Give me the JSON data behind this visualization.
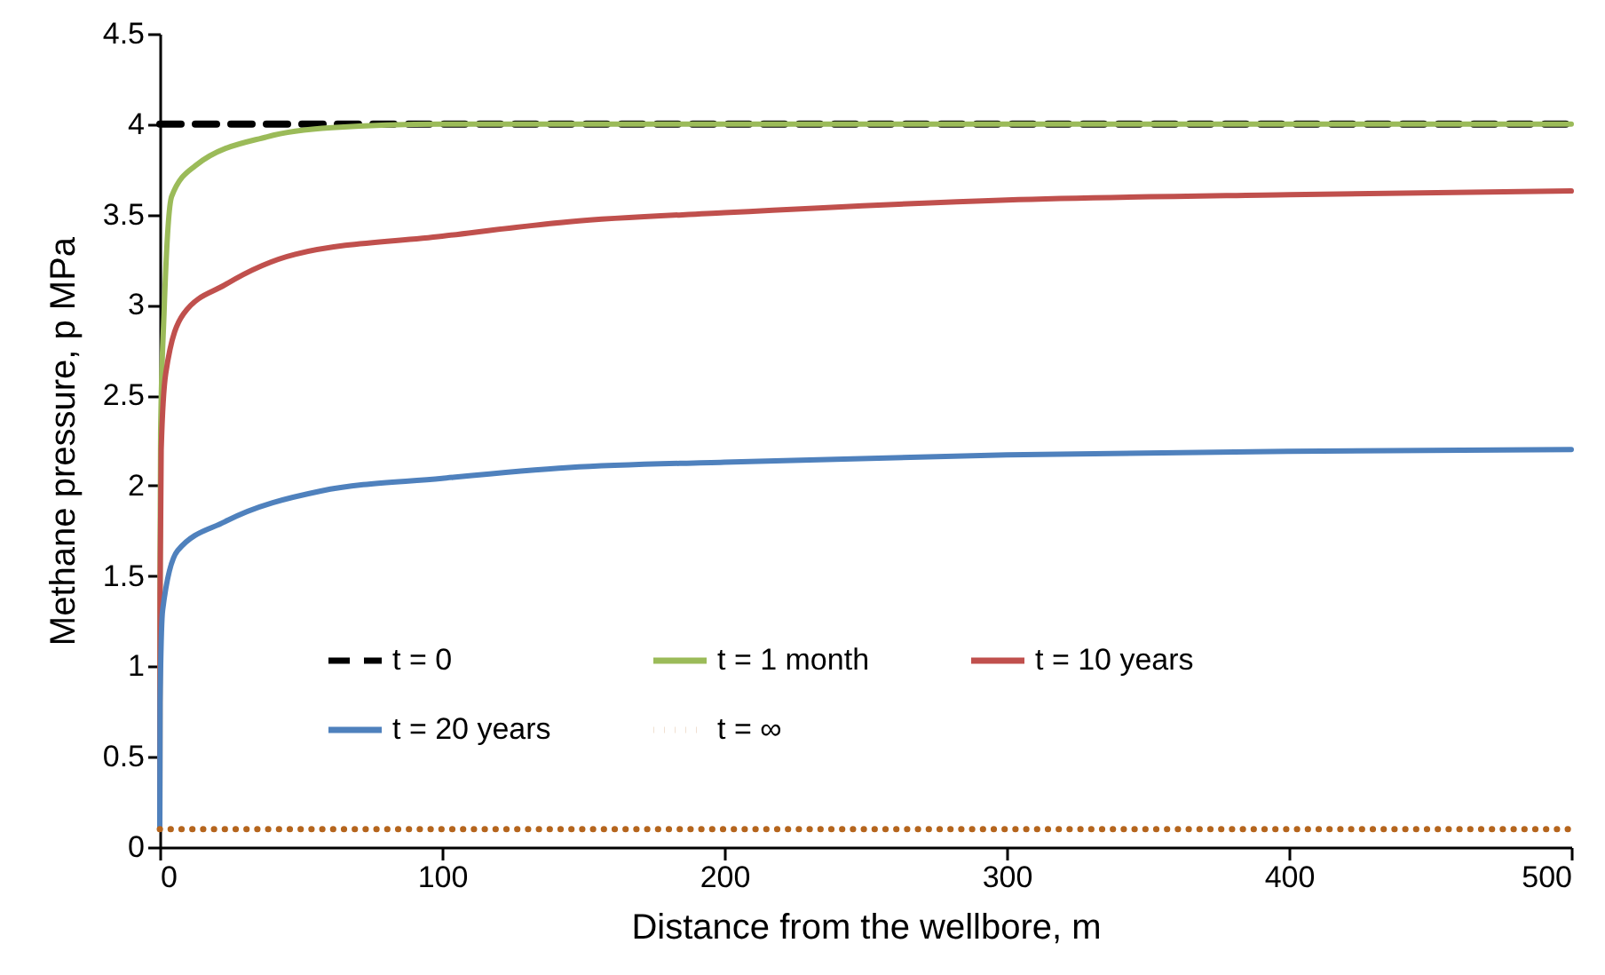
{
  "chart_data": {
    "type": "line",
    "xlabel": "Distance from the wellbore, m",
    "ylabel": "Methane pressure, p  MPa",
    "xlim": [
      0,
      500
    ],
    "xticks": [
      0,
      100,
      200,
      300,
      400,
      500
    ],
    "ylim": [
      0,
      4.5
    ],
    "yticks": [
      0,
      0.5,
      1,
      1.5,
      2,
      2.5,
      3,
      3.5,
      4,
      4.5
    ],
    "grid": false,
    "legend": "bottom",
    "marker": "none",
    "series": [
      {
        "name": "t = 0",
        "color": "#000000",
        "line_style": "dashed",
        "x": [
          0,
          500
        ],
        "values": [
          4,
          4
        ]
      },
      {
        "name": "t = 1 month",
        "color": "#9bbb59",
        "line_style": "solid",
        "x": [
          0,
          0.1,
          0.3,
          1.5,
          4.2,
          12.6,
          38,
          61,
          100,
          200,
          300,
          400,
          500
        ],
        "values": [
          0.1,
          1.6,
          2.3,
          2.95,
          3.6,
          3.77,
          3.93,
          3.98,
          4,
          4,
          4,
          4,
          4
        ]
      },
      {
        "name": "t = 10 years",
        "color": "#c0504d",
        "line_style": "solid",
        "x": [
          0,
          0.1,
          0.5,
          2.1,
          8.4,
          23,
          48,
          100,
          145,
          200,
          300,
          400,
          500
        ],
        "values": [
          0.1,
          1.4,
          2.2,
          2.62,
          2.95,
          3.11,
          3.28,
          3.38,
          3.46,
          3.51,
          3.58,
          3.61,
          3.63
        ]
      },
      {
        "name": "t = 20 years",
        "color": "#4f81bd",
        "line_style": "solid",
        "x": [
          0,
          0.1,
          1,
          6.3,
          23,
          57,
          100,
          145,
          200,
          300,
          400,
          500
        ],
        "values": [
          0.1,
          0.8,
          1.31,
          1.64,
          1.8,
          1.97,
          2.04,
          2.1,
          2.13,
          2.17,
          2.19,
          2.2
        ]
      },
      {
        "name": "t = ∞",
        "color": "#b5651d",
        "line_style": "dotted",
        "x": [
          0,
          500
        ],
        "values": [
          0.1,
          0.1
        ]
      }
    ]
  }
}
